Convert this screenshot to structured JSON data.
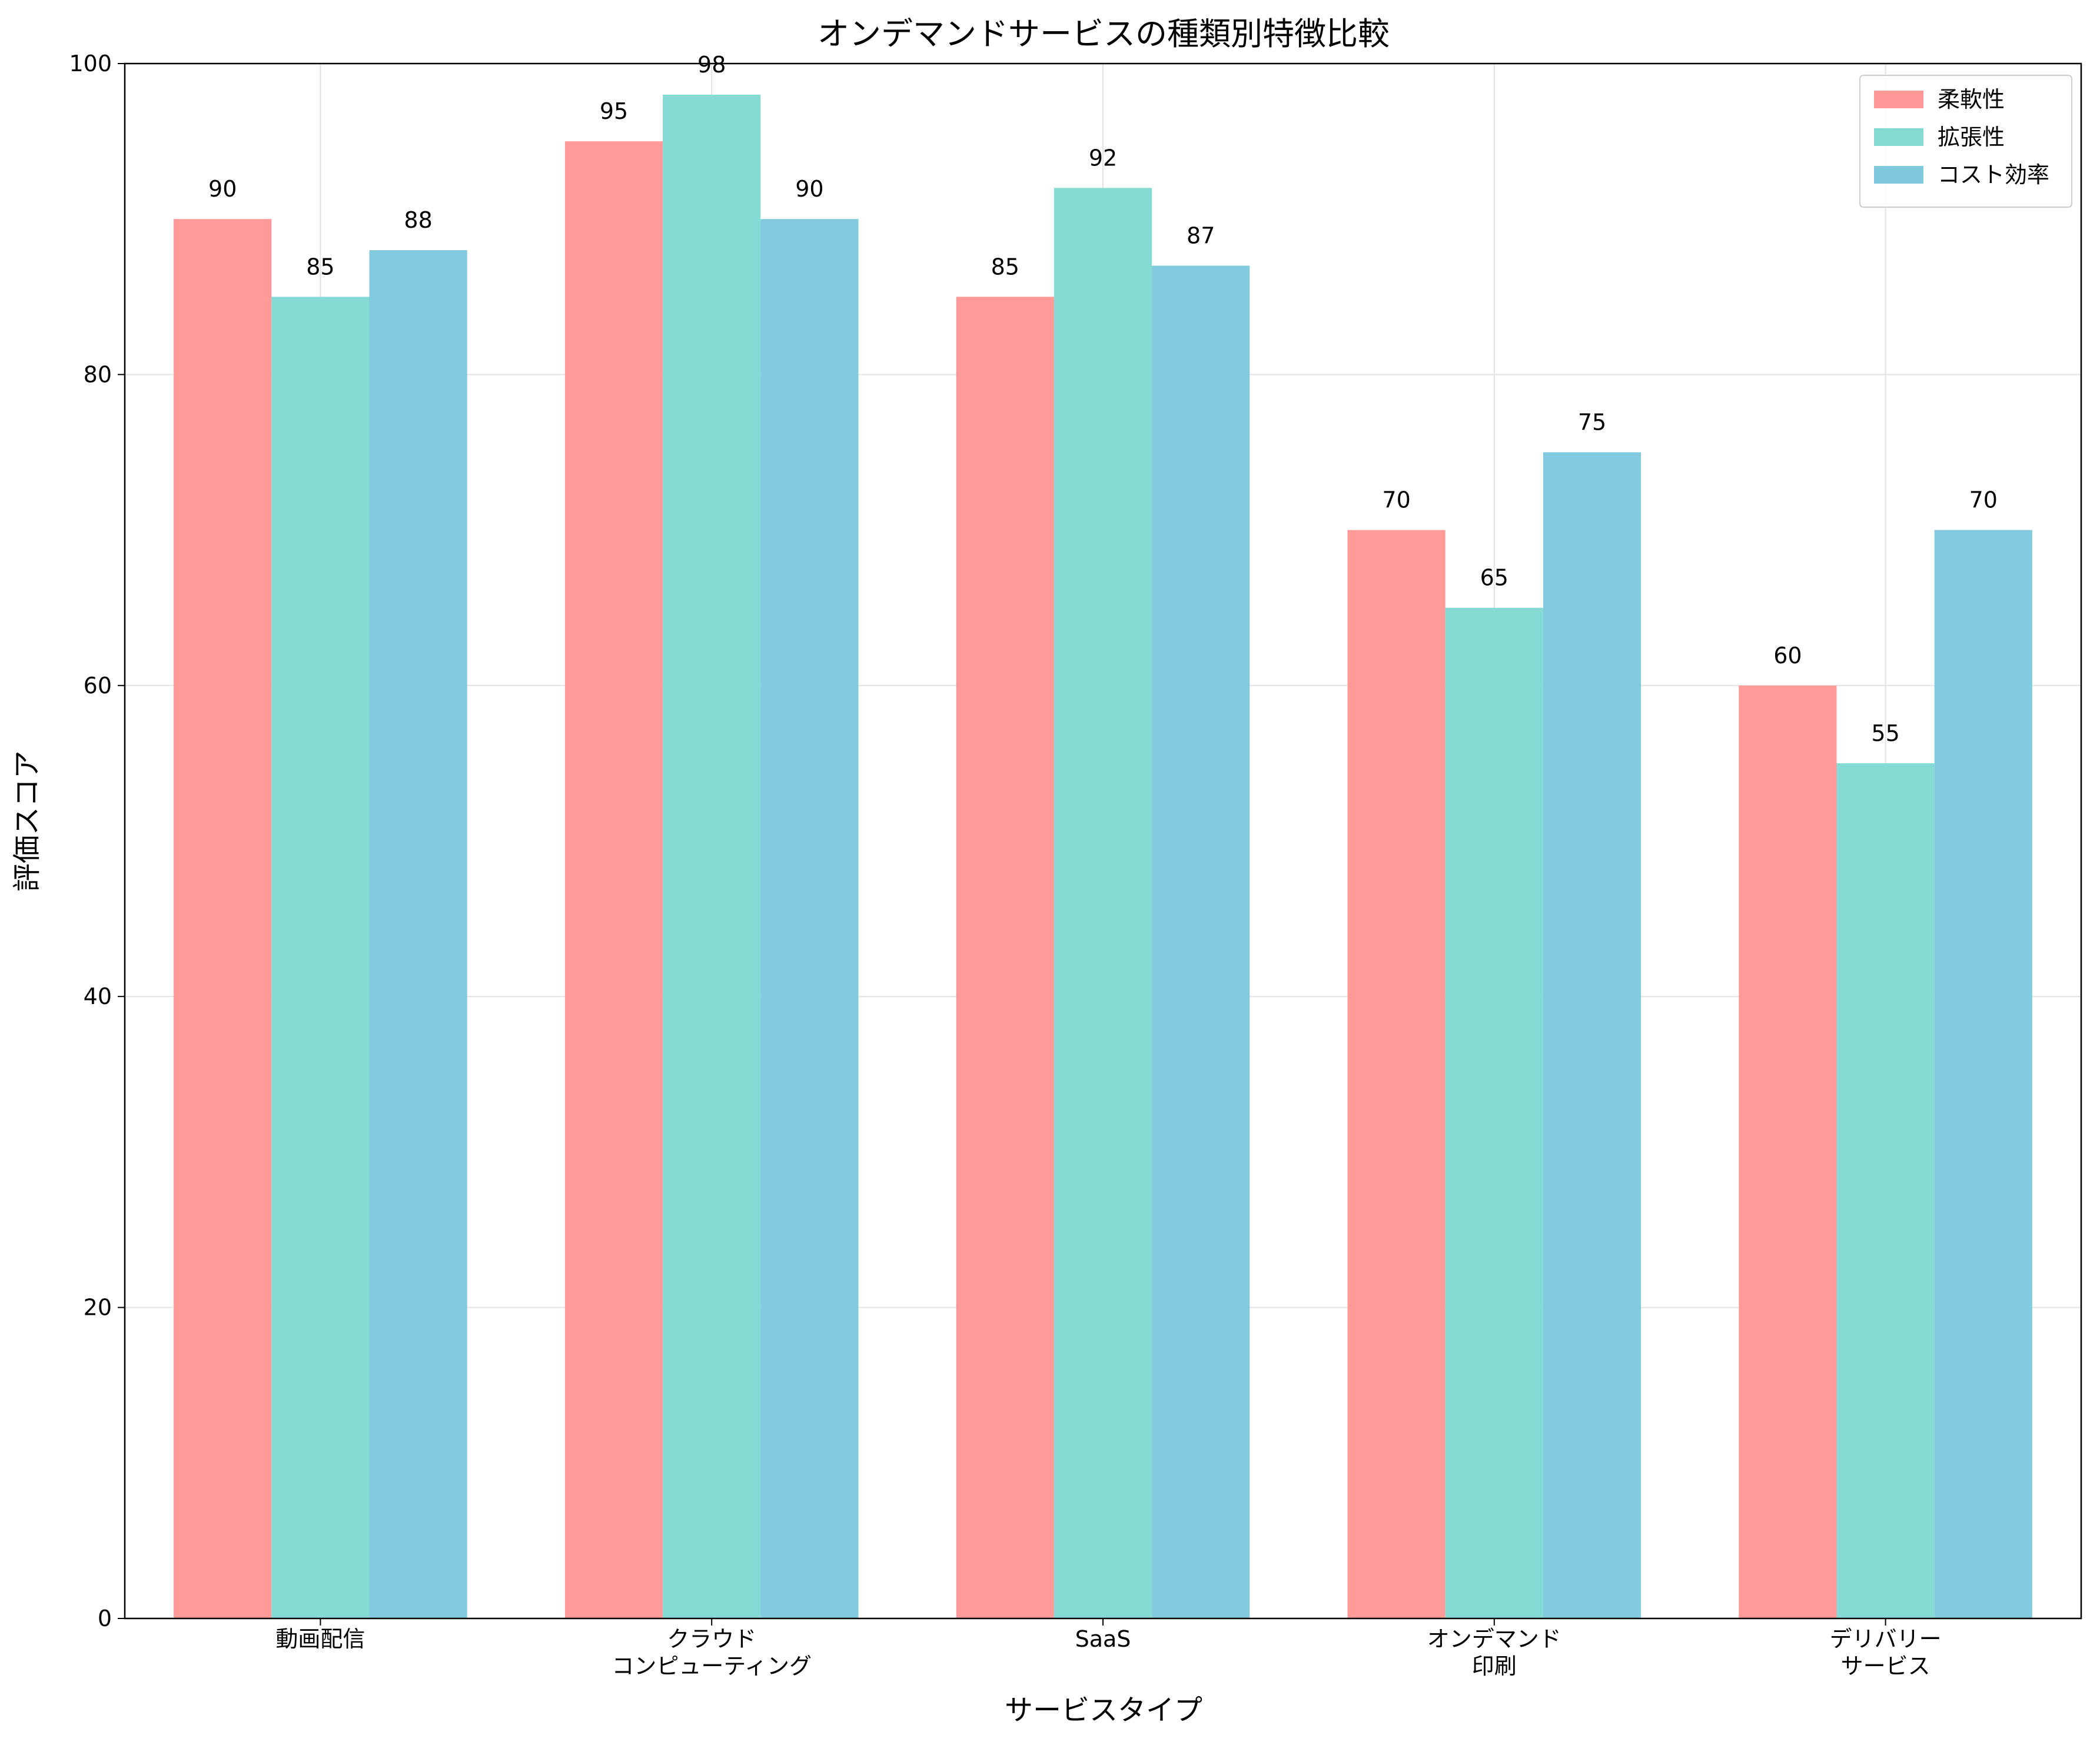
{
  "chart_data": {
    "type": "bar",
    "title": "オンデマンドサービスの種類別特徴比較",
    "xlabel": "サービスタイプ",
    "ylabel": "評価スコア",
    "ylim": [
      0,
      100
    ],
    "yticks": [
      0,
      20,
      40,
      60,
      80,
      100
    ],
    "grid": true,
    "legend_position": "top-right",
    "categories": [
      [
        "動画配信"
      ],
      [
        "クラウド",
        "コンピューティング"
      ],
      [
        "SaaS"
      ],
      [
        "オンデマンド",
        "印刷"
      ],
      [
        "デリバリー",
        "サービス"
      ]
    ],
    "series": [
      {
        "name": "柔軟性",
        "color": "#FF9896",
        "values": [
          90,
          95,
          85,
          70,
          60
        ]
      },
      {
        "name": "拡張性",
        "color": "#84D9D3",
        "values": [
          85,
          98,
          92,
          65,
          55
        ]
      },
      {
        "name": "コスト効率",
        "color": "#80C9DD",
        "values": [
          88,
          90,
          87,
          75,
          70
        ]
      }
    ]
  }
}
